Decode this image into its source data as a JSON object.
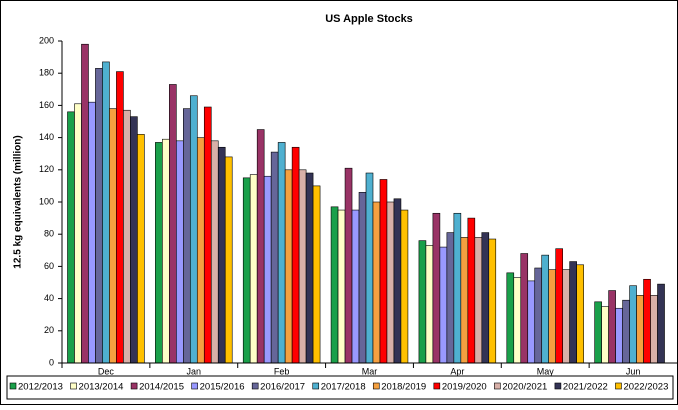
{
  "chart_data": {
    "type": "bar",
    "title": "US Apple Stocks",
    "y_label": "12.5 kg equivalents  (million)",
    "categories": [
      "Dec",
      "Jan",
      "Feb",
      "Mar",
      "Apr",
      "May",
      "Jun"
    ],
    "series": [
      {
        "name": "2012/2013",
        "color": "#1aa04a",
        "values": [
          156,
          137,
          115,
          97,
          76,
          56,
          38
        ]
      },
      {
        "name": "2013/2014",
        "color": "#ffffc8",
        "values": [
          161,
          139,
          117,
          95,
          73,
          53,
          35
        ]
      },
      {
        "name": "2014/2015",
        "color": "#993366",
        "values": [
          198,
          173,
          145,
          121,
          93,
          68,
          45
        ]
      },
      {
        "name": "2015/2016",
        "color": "#9999ff",
        "values": [
          162,
          138,
          116,
          95,
          72,
          51,
          34
        ]
      },
      {
        "name": "2016/2017",
        "color": "#666699",
        "values": [
          183,
          158,
          131,
          106,
          81,
          59,
          39
        ]
      },
      {
        "name": "2017/2018",
        "color": "#4fb0d0",
        "values": [
          187,
          166,
          137,
          118,
          93,
          67,
          48
        ]
      },
      {
        "name": "2018/2019",
        "color": "#f5a040",
        "values": [
          158,
          140,
          120,
          100,
          78,
          58,
          42
        ]
      },
      {
        "name": "2019/2020",
        "color": "#ff0000",
        "values": [
          181,
          159,
          134,
          114,
          90,
          71,
          52
        ]
      },
      {
        "name": "2020/2021",
        "color": "#d8b0a8",
        "values": [
          157,
          138,
          120,
          100,
          78,
          58,
          42
        ]
      },
      {
        "name": "2021/2022",
        "color": "#333355",
        "values": [
          153,
          134,
          118,
          102,
          81,
          63,
          49
        ]
      },
      {
        "name": "2022/2023",
        "color": "#ffc000",
        "values": [
          142,
          128,
          110,
          95,
          77,
          61,
          null
        ]
      }
    ],
    "ylim": [
      0,
      200
    ],
    "yticks": [
      0,
      20,
      40,
      60,
      80,
      100,
      120,
      140,
      160,
      180,
      200
    ],
    "grid": false,
    "legend": "bottom"
  }
}
